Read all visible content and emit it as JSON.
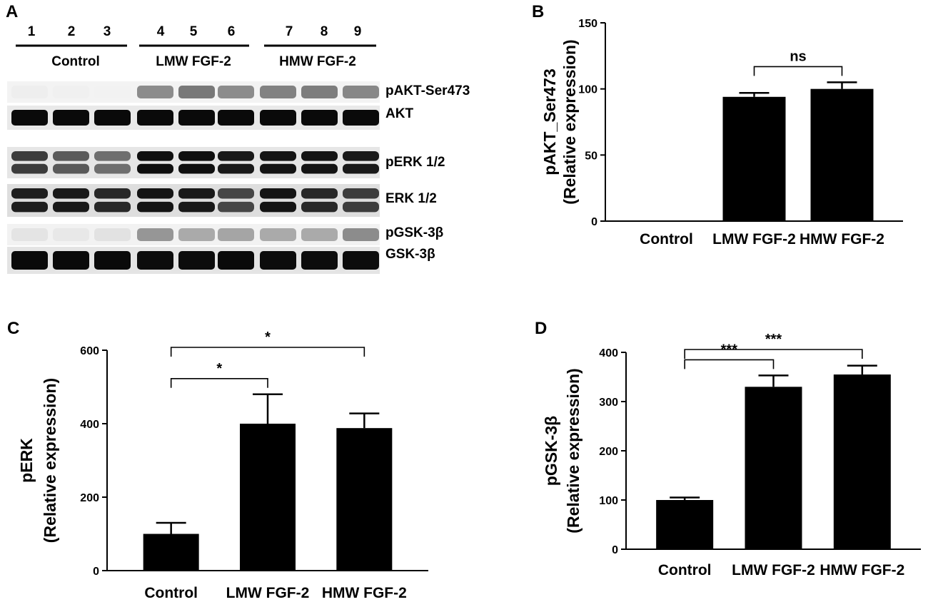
{
  "panel_letters": [
    "A",
    "B",
    "C",
    "D"
  ],
  "blot": {
    "lane_numbers": [
      "1",
      "2",
      "3",
      "4",
      "5",
      "6",
      "7",
      "8",
      "9"
    ],
    "groups": [
      "Control",
      "LMW FGF-2",
      "HMW FGF-2"
    ],
    "bands": [
      "pAKT-Ser473",
      "AKT",
      "pERK 1/2",
      "ERK 1/2",
      "pGSK-3β",
      "GSK-3β"
    ]
  },
  "chart_data": [
    {
      "panel": "B",
      "type": "bar",
      "categories": [
        "Control",
        "LMW FGF-2",
        "HMW FGF-2"
      ],
      "values": [
        0,
        94,
        100
      ],
      "errors": [
        0,
        3,
        5
      ],
      "ylabel_line1": "pAKT_Ser473",
      "ylabel_line2": "(Relative expression)",
      "ylim": [
        0,
        150
      ],
      "yticks": [
        "0",
        "50",
        "100",
        "150"
      ],
      "annotations": [
        {
          "from": 1,
          "to": 2,
          "label": "ns"
        }
      ]
    },
    {
      "panel": "C",
      "type": "bar",
      "categories": [
        "Control",
        "LMW FGF-2",
        "HMW FGF-2"
      ],
      "values": [
        100,
        400,
        388
      ],
      "errors": [
        30,
        80,
        40
      ],
      "ylabel_line1": "pERK",
      "ylabel_line2": "(Relative expression)",
      "ylim": [
        0,
        600
      ],
      "yticks": [
        "0",
        "200",
        "400",
        "600"
      ],
      "annotations": [
        {
          "from": 0,
          "to": 1,
          "label": "*"
        },
        {
          "from": 0,
          "to": 2,
          "label": "*"
        }
      ]
    },
    {
      "panel": "D",
      "type": "bar",
      "categories": [
        "Control",
        "LMW FGF-2",
        "HMW FGF-2"
      ],
      "values": [
        100,
        330,
        355
      ],
      "errors": [
        5,
        23,
        18
      ],
      "ylabel_line1": "pGSK-3β",
      "ylabel_line2": "(Relative expression)",
      "ylim": [
        0,
        400
      ],
      "yticks": [
        "0",
        "100",
        "200",
        "300",
        "400"
      ],
      "annotations": [
        {
          "from": 0,
          "to": 1,
          "label": "***"
        },
        {
          "from": 0,
          "to": 2,
          "label": "***"
        }
      ]
    }
  ]
}
